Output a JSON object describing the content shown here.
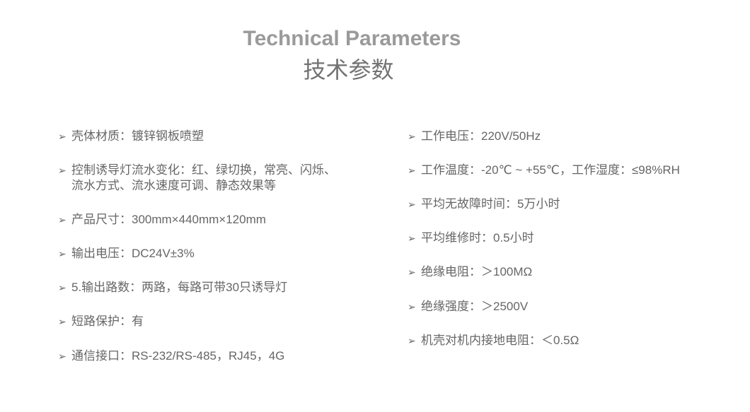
{
  "title_en": "Technical Parameters",
  "title_cn": "技术参数",
  "bullet_icon": "arrow-right-icon",
  "left_items": [
    "壳体材质：镀锌钢板喷塑",
    "控制诱导灯流水变化：红、绿切换，常亮、闪烁、\n流水方式、流水速度可调、静态效果等",
    "产品尺寸：300mm×440mm×120mm",
    "输出电压：DC24V±3%",
    "5.输出路数：两路，每路可带30只诱导灯",
    "短路保护：有",
    "通信接口：RS-232/RS-485，RJ45，4G"
  ],
  "right_items": [
    "工作电压：220V/50Hz",
    "工作温度：-20℃ ~ +55℃，工作湿度：≤98%RH",
    "平均无故障时间：5万小时",
    "平均维修时：0.5小时",
    "绝缘电阻：＞100MΩ",
    "绝缘强度：＞2500V",
    "机壳对机内接地电阻：＜0.5Ω"
  ]
}
